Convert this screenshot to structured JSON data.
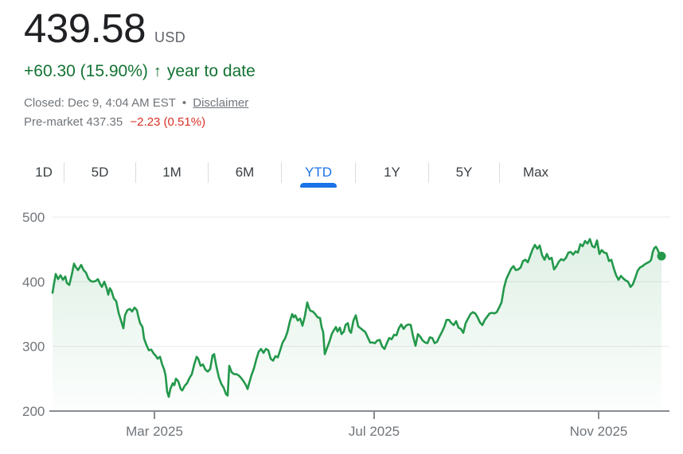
{
  "header": {
    "price": "439.58",
    "currency": "USD",
    "change_line": {
      "change": "+60.30 (15.90%)",
      "arrow": "↑",
      "period": "year to date"
    },
    "status_line": {
      "closed": "Closed: Dec 9, 4:04 AM EST",
      "separator": "•",
      "disclaimer": "Disclaimer"
    },
    "premarket": {
      "label": "Pre-market",
      "price": "437.35",
      "change": "−2.23 (0.51%)"
    }
  },
  "tabs": {
    "items": [
      {
        "id": "1d",
        "label": "1D",
        "active": false
      },
      {
        "id": "5d",
        "label": "5D",
        "active": false
      },
      {
        "id": "1m",
        "label": "1M",
        "active": false
      },
      {
        "id": "6m",
        "label": "6M",
        "active": false
      },
      {
        "id": "ytd",
        "label": "YTD",
        "active": true
      },
      {
        "id": "1y",
        "label": "1Y",
        "active": false
      },
      {
        "id": "5y",
        "label": "5Y",
        "active": false
      },
      {
        "id": "max",
        "label": "Max",
        "active": false
      }
    ]
  },
  "colors": {
    "price_text": "#202124",
    "secondary_text": "#5f6368",
    "muted_text": "#70757a",
    "positive_green": "#137333",
    "negative_red": "#d93025",
    "active_tab_blue": "#1a73e8",
    "line_green": "#23984b",
    "area_fill_top": "rgba(35,152,75,0.16)",
    "area_fill_bottom": "rgba(35,152,75,0.01)",
    "gridline": "#e8eaed",
    "axis": "#878c91",
    "tab_divider": "#dadce0"
  },
  "chart_data": {
    "type": "area",
    "title": "Stock price, year to date",
    "currency": "USD",
    "last_price": 439.58,
    "ylim": [
      200,
      500
    ],
    "y_ticks": [
      500,
      400,
      300,
      200
    ],
    "grid": true,
    "legend": false,
    "x_axis": {
      "range": [
        "Jan 2025",
        "Dec 2025"
      ],
      "ticks": [
        {
          "px": 194,
          "label": "Mar 2025"
        },
        {
          "px": 470,
          "label": "Jul 2025"
        },
        {
          "px": 752,
          "label": "Nov 2025"
        }
      ]
    },
    "last_point": {
      "px": 831,
      "value": 439.58
    },
    "series": [
      {
        "name": "price",
        "points": [
          [
            66,
            383
          ],
          [
            68,
            398
          ],
          [
            70,
            412
          ],
          [
            73,
            404
          ],
          [
            76,
            410
          ],
          [
            79,
            403
          ],
          [
            82,
            408
          ],
          [
            84,
            398
          ],
          [
            87,
            395
          ],
          [
            90,
            410
          ],
          [
            93,
            428
          ],
          [
            95,
            423
          ],
          [
            98,
            418
          ],
          [
            102,
            426
          ],
          [
            105,
            418
          ],
          [
            108,
            414
          ],
          [
            111,
            405
          ],
          [
            114,
            401
          ],
          [
            117,
            400
          ],
          [
            120,
            401
          ],
          [
            123,
            404
          ],
          [
            126,
            396
          ],
          [
            128,
            392
          ],
          [
            131,
            400
          ],
          [
            134,
            390
          ],
          [
            136,
            380
          ],
          [
            138,
            390
          ],
          [
            140,
            386
          ],
          [
            143,
            374
          ],
          [
            146,
            370
          ],
          [
            149,
            352
          ],
          [
            152,
            340
          ],
          [
            155,
            328
          ],
          [
            157,
            348
          ],
          [
            160,
            356
          ],
          [
            163,
            358
          ],
          [
            166,
            354
          ],
          [
            169,
            360
          ],
          [
            172,
            356
          ],
          [
            174,
            345
          ],
          [
            176,
            336
          ],
          [
            179,
            330
          ],
          [
            181,
            312
          ],
          [
            184,
            302
          ],
          [
            187,
            294
          ],
          [
            190,
            295
          ],
          [
            193,
            289
          ],
          [
            196,
            285
          ],
          [
            198,
            281
          ],
          [
            201,
            284
          ],
          [
            204,
            271
          ],
          [
            206,
            265
          ],
          [
            208,
            255
          ],
          [
            210,
            230
          ],
          [
            212,
            222
          ],
          [
            214,
            234
          ],
          [
            217,
            243
          ],
          [
            219,
            240
          ],
          [
            221,
            250
          ],
          [
            224,
            246
          ],
          [
            227,
            234
          ],
          [
            229,
            232
          ],
          [
            232,
            239
          ],
          [
            235,
            243
          ],
          [
            238,
            251
          ],
          [
            241,
            257
          ],
          [
            244,
            272
          ],
          [
            247,
            284
          ],
          [
            249,
            281
          ],
          [
            252,
            270
          ],
          [
            255,
            272
          ],
          [
            258,
            264
          ],
          [
            261,
            261
          ],
          [
            264,
            265
          ],
          [
            267,
            286
          ],
          [
            269,
            288
          ],
          [
            272,
            268
          ],
          [
            275,
            252
          ],
          [
            278,
            242
          ],
          [
            281,
            236
          ],
          [
            284,
            226
          ],
          [
            286,
            224
          ],
          [
            288,
            270
          ],
          [
            291,
            260
          ],
          [
            294,
            257
          ],
          [
            297,
            257
          ],
          [
            300,
            255
          ],
          [
            303,
            251
          ],
          [
            306,
            246
          ],
          [
            309,
            240
          ],
          [
            311,
            234
          ],
          [
            313,
            243
          ],
          [
            316,
            256
          ],
          [
            319,
            266
          ],
          [
            322,
            280
          ],
          [
            325,
            292
          ],
          [
            328,
            296
          ],
          [
            331,
            290
          ],
          [
            334,
            296
          ],
          [
            337,
            294
          ],
          [
            340,
            281
          ],
          [
            343,
            278
          ],
          [
            346,
            285
          ],
          [
            349,
            283
          ],
          [
            352,
            294
          ],
          [
            355,
            306
          ],
          [
            358,
            312
          ],
          [
            361,
            322
          ],
          [
            364,
            338
          ],
          [
            367,
            350
          ],
          [
            369,
            345
          ],
          [
            371,
            348
          ],
          [
            374,
            340
          ],
          [
            377,
            343
          ],
          [
            380,
            332
          ],
          [
            383,
            347
          ],
          [
            386,
            368
          ],
          [
            388,
            360
          ],
          [
            390,
            355
          ],
          [
            393,
            354
          ],
          [
            396,
            350
          ],
          [
            399,
            345
          ],
          [
            402,
            344
          ],
          [
            404,
            330
          ],
          [
            406,
            322
          ],
          [
            408,
            288
          ],
          [
            411,
            298
          ],
          [
            414,
            308
          ],
          [
            417,
            320
          ],
          [
            420,
            326
          ],
          [
            422,
            330
          ],
          [
            424,
            323
          ],
          [
            427,
            329
          ],
          [
            429,
            319
          ],
          [
            432,
            323
          ],
          [
            434,
            333
          ],
          [
            437,
            336
          ],
          [
            439,
            324
          ],
          [
            441,
            321
          ],
          [
            444,
            340
          ],
          [
            447,
            348
          ],
          [
            450,
            331
          ],
          [
            453,
            328
          ],
          [
            456,
            325
          ],
          [
            459,
            322
          ],
          [
            462,
            314
          ],
          [
            465,
            306
          ],
          [
            468,
            306
          ],
          [
            471,
            305
          ],
          [
            474,
            309
          ],
          [
            477,
            310
          ],
          [
            480,
            300
          ],
          [
            483,
            296
          ],
          [
            486,
            305
          ],
          [
            489,
            313
          ],
          [
            492,
            311
          ],
          [
            495,
            318
          ],
          [
            498,
            317
          ],
          [
            501,
            328
          ],
          [
            504,
            334
          ],
          [
            507,
            327
          ],
          [
            510,
            332
          ],
          [
            513,
            334
          ],
          [
            516,
            333
          ],
          [
            519,
            315
          ],
          [
            522,
            301
          ],
          [
            525,
            319
          ],
          [
            528,
            315
          ],
          [
            531,
            309
          ],
          [
            534,
            306
          ],
          [
            537,
            305
          ],
          [
            540,
            314
          ],
          [
            543,
            313
          ],
          [
            546,
            305
          ],
          [
            549,
            307
          ],
          [
            552,
            315
          ],
          [
            555,
            322
          ],
          [
            558,
            330
          ],
          [
            561,
            341
          ],
          [
            564,
            341
          ],
          [
            567,
            336
          ],
          [
            570,
            333
          ],
          [
            573,
            339
          ],
          [
            576,
            329
          ],
          [
            579,
            327
          ],
          [
            582,
            321
          ],
          [
            585,
            336
          ],
          [
            588,
            343
          ],
          [
            591,
            350
          ],
          [
            594,
            353
          ],
          [
            597,
            351
          ],
          [
            600,
            345
          ],
          [
            603,
            337
          ],
          [
            606,
            333
          ],
          [
            609,
            341
          ],
          [
            612,
            346
          ],
          [
            615,
            351
          ],
          [
            618,
            352
          ],
          [
            621,
            351
          ],
          [
            624,
            353
          ],
          [
            627,
            360
          ],
          [
            630,
            368
          ],
          [
            633,
            390
          ],
          [
            636,
            404
          ],
          [
            639,
            412
          ],
          [
            642,
            420
          ],
          [
            645,
            424
          ],
          [
            648,
            418
          ],
          [
            651,
            419
          ],
          [
            654,
            422
          ],
          [
            657,
            432
          ],
          [
            660,
            434
          ],
          [
            663,
            430
          ],
          [
            666,
            440
          ],
          [
            669,
            450
          ],
          [
            672,
            457
          ],
          [
            675,
            451
          ],
          [
            678,
            456
          ],
          [
            681,
            441
          ],
          [
            684,
            434
          ],
          [
            687,
            443
          ],
          [
            690,
            435
          ],
          [
            693,
            437
          ],
          [
            696,
            419
          ],
          [
            699,
            424
          ],
          [
            702,
            431
          ],
          [
            705,
            435
          ],
          [
            708,
            433
          ],
          [
            711,
            437
          ],
          [
            714,
            445
          ],
          [
            717,
            446
          ],
          [
            720,
            442
          ],
          [
            723,
            447
          ],
          [
            726,
            445
          ],
          [
            729,
            458
          ],
          [
            732,
            455
          ],
          [
            735,
            463
          ],
          [
            738,
            459
          ],
          [
            741,
            466
          ],
          [
            744,
            455
          ],
          [
            747,
            453
          ],
          [
            750,
            464
          ],
          [
            753,
            443
          ],
          [
            756,
            449
          ],
          [
            759,
            445
          ],
          [
            762,
            444
          ],
          [
            765,
            432
          ],
          [
            768,
            434
          ],
          [
            771,
            421
          ],
          [
            774,
            410
          ],
          [
            777,
            403
          ],
          [
            780,
            409
          ],
          [
            783,
            405
          ],
          [
            786,
            402
          ],
          [
            789,
            400
          ],
          [
            792,
            392
          ],
          [
            795,
            396
          ],
          [
            798,
            406
          ],
          [
            801,
            417
          ],
          [
            804,
            422
          ],
          [
            807,
            424
          ],
          [
            810,
            427
          ],
          [
            813,
            429
          ],
          [
            816,
            431
          ],
          [
            818,
            434
          ],
          [
            820,
            446
          ],
          [
            822,
            452
          ],
          [
            824,
            454
          ],
          [
            826,
            450
          ],
          [
            828,
            444
          ],
          [
            831,
            439.58
          ]
        ]
      }
    ]
  }
}
